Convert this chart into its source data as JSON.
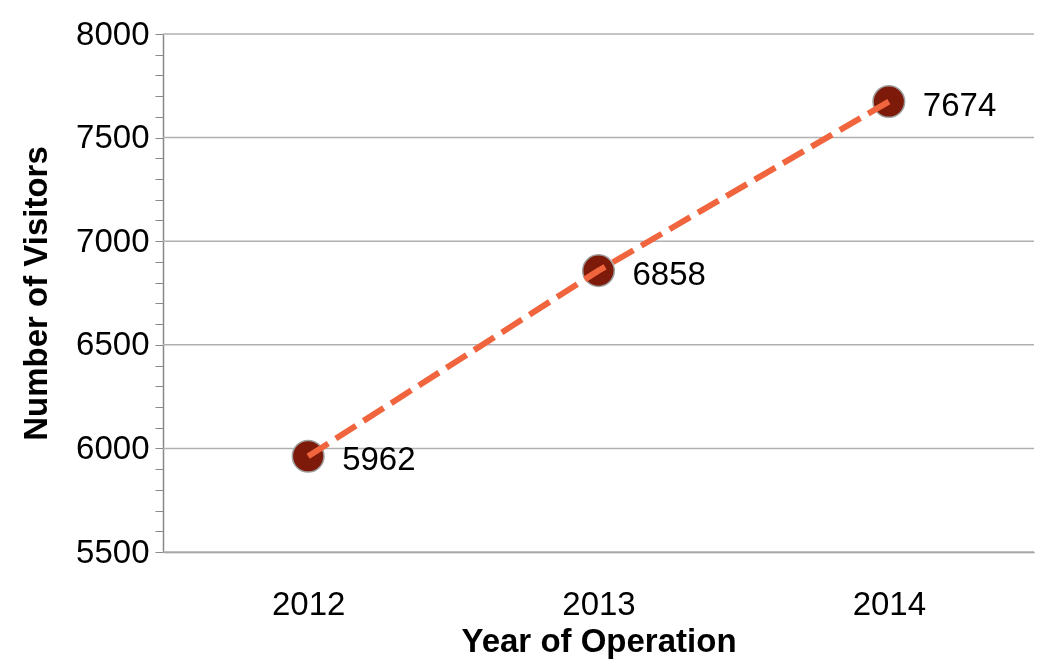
{
  "chart_data": {
    "type": "line",
    "xlabel": "Year of Operation",
    "ylabel": "Number of Visitors",
    "categories": [
      "2012",
      "2013",
      "2014"
    ],
    "series": [
      {
        "color": "#f0653d",
        "colors": [
          "#7d1a09",
          "#7d1a09",
          "#7d1a09"
        ],
        "values": [
          5962,
          6858,
          7674
        ]
      }
    ],
    "marker": "circle",
    "line_style": "dashed",
    "data_labels": true,
    "grid": "y",
    "ylim": [
      5500,
      8000
    ],
    "yticks": [
      5500,
      {
        "value": 5600,
        "label": null
      },
      {
        "value": 5700,
        "label": null
      },
      {
        "value": 5800,
        "label": null
      },
      {
        "value": 5900,
        "label": null
      },
      6000,
      {
        "value": 6100,
        "label": null
      },
      {
        "value": 6200,
        "label": null
      },
      {
        "value": 6300,
        "label": null
      },
      {
        "value": 6400,
        "label": null
      },
      6500,
      {
        "value": 6600,
        "label": null
      },
      {
        "value": 6700,
        "label": null
      },
      {
        "value": 6800,
        "label": null
      },
      {
        "value": 6900,
        "label": null
      },
      7000,
      {
        "value": 7100,
        "label": null
      },
      {
        "value": 7200,
        "label": null
      },
      {
        "value": 7300,
        "label": null
      },
      {
        "value": 7400,
        "label": null
      },
      7500,
      {
        "value": 7600,
        "label": null
      },
      {
        "value": 7700,
        "label": null
      },
      {
        "value": 7800,
        "label": null
      },
      {
        "value": 7900,
        "label": null
      },
      8000
    ]
  }
}
